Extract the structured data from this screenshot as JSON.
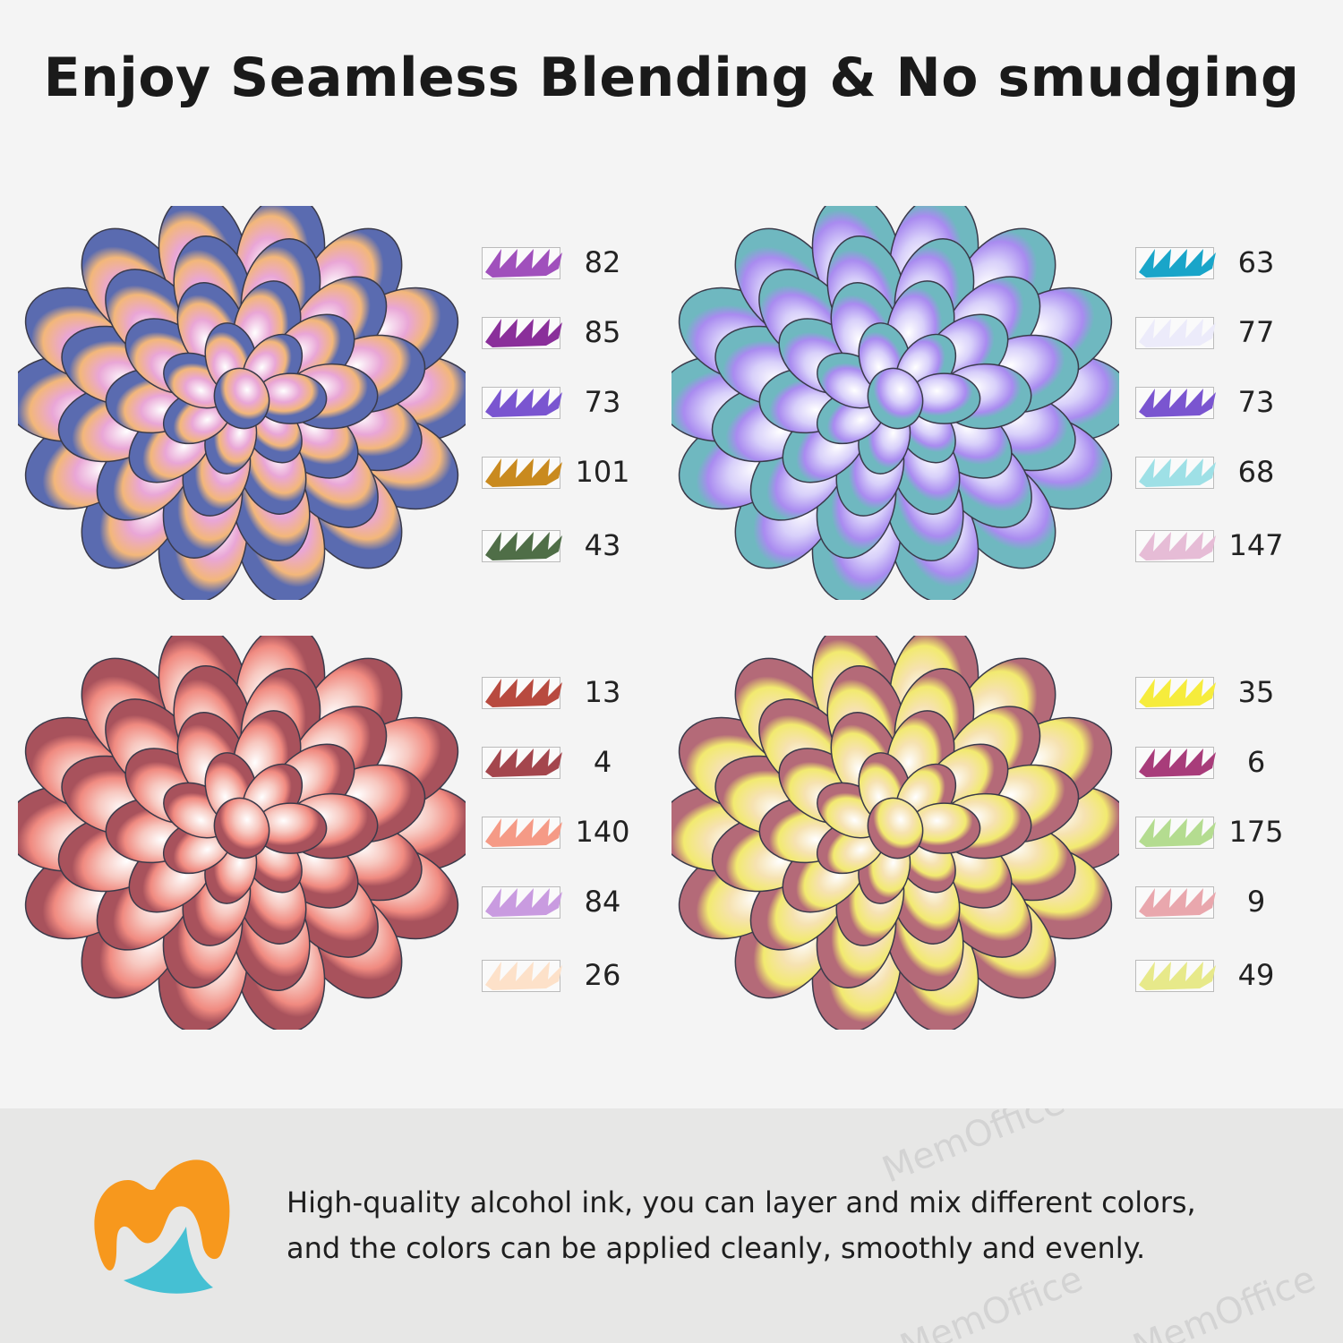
{
  "title": "Enjoy Seamless Blending & No smudging",
  "flowers": [
    {
      "name": "orange-purple-succulent",
      "colors": [
        "#f3b77a",
        "#e9a6d6",
        "#5a6bb0",
        "#b9e3c9"
      ],
      "swatches": [
        {
          "code": "82",
          "color": "#a050bc"
        },
        {
          "code": "85",
          "color": "#8a2f9a"
        },
        {
          "code": "73",
          "color": "#7a55d0"
        },
        {
          "code": "101",
          "color": "#c98a1f"
        },
        {
          "code": "43",
          "color": "#4f6e47"
        }
      ]
    },
    {
      "name": "purple-teal-succulent",
      "colors": [
        "#a98bf0",
        "#d8d0fa",
        "#6fb8c0",
        "#7a5ae0"
      ],
      "swatches": [
        {
          "code": "63",
          "color": "#19a5c9"
        },
        {
          "code": "77",
          "color": "#ecebfa"
        },
        {
          "code": "73",
          "color": "#7a55d0"
        },
        {
          "code": "68",
          "color": "#9ee0e6"
        },
        {
          "code": "147",
          "color": "#e6bcd6"
        }
      ]
    },
    {
      "name": "red-pink-succulent",
      "colors": [
        "#f08a80",
        "#f7c8c0",
        "#a8525c",
        "#f3d9d2"
      ],
      "swatches": [
        {
          "code": "13",
          "color": "#b84a3f"
        },
        {
          "code": "4",
          "color": "#a4464d"
        },
        {
          "code": "140",
          "color": "#f59a86"
        },
        {
          "code": "84",
          "color": "#c99be0"
        },
        {
          "code": "26",
          "color": "#fde1c9"
        }
      ]
    },
    {
      "name": "yellow-succulent",
      "colors": [
        "#f2ea70",
        "#f6e2b0",
        "#b46a78",
        "#c7e6c0"
      ],
      "swatches": [
        {
          "code": "35",
          "color": "#f6ec3c"
        },
        {
          "code": "6",
          "color": "#a83c7a"
        },
        {
          "code": "175",
          "color": "#b4dc90"
        },
        {
          "code": "9",
          "color": "#e9a7ad"
        },
        {
          "code": "49",
          "color": "#e7e98a"
        }
      ]
    }
  ],
  "footer": {
    "line1": "High-quality alcohol ink, you can layer and mix different colors,",
    "line2": "and the colors can be applied cleanly, smoothly and evenly.",
    "watermark": "MemOffice",
    "logo_colors": {
      "orange": "#f7981d",
      "blue": "#45c0d3"
    }
  }
}
